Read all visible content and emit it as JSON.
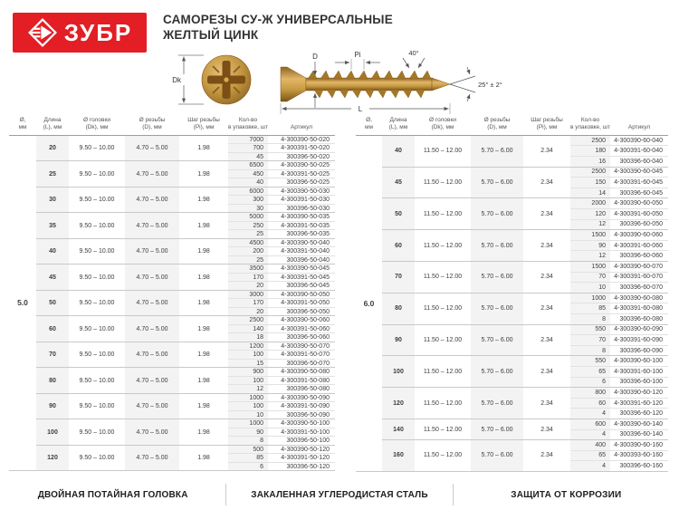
{
  "colors": {
    "brand_red": "#e31e24",
    "row_shade": "#f3f3f3",
    "screw_gold": "#c3963f"
  },
  "logo": {
    "text": "ЗУБР"
  },
  "title": {
    "line1": "САМОРЕЗЫ СУ-Ж УНИВЕРСАЛЬНЫЕ",
    "line2": "ЖЕЛТЫЙ ЦИНК"
  },
  "diagram": {
    "head_label": "Dk",
    "shaft_label": "D",
    "pitch_label": "Pi",
    "flank_angle_label": "40°",
    "tip_angle_label": "25° ± 2°",
    "length_label": "L"
  },
  "table_headers": [
    {
      "l1": "Ø,",
      "l2": "мм"
    },
    {
      "l1": "Длина",
      "l2": "(L), мм"
    },
    {
      "l1": "Ø головки",
      "l2": "(Dk), мм"
    },
    {
      "l1": "Ø резьбы",
      "l2": "(D), мм"
    },
    {
      "l1": "Шаг резьбы",
      "l2": "(Pi), мм"
    },
    {
      "l1": "Кол-во",
      "l2": "в упаковке, шт"
    },
    {
      "l1": "Артикул",
      "l2": ""
    }
  ],
  "tables": [
    {
      "diameter": "5.0",
      "head_diameter": "9.50 – 10.00",
      "thread_diameter": "4.70 – 5.00",
      "thread_pitch": "1.98",
      "groups": [
        {
          "length": "20",
          "packs": [
            [
              "7000",
              "4-300390-50-020"
            ],
            [
              "700",
              "4-300391-50-020"
            ],
            [
              "45",
              "300396-50-020"
            ]
          ]
        },
        {
          "length": "25",
          "packs": [
            [
              "6500",
              "4-300390-50-025"
            ],
            [
              "450",
              "4-300391-50-025"
            ],
            [
              "40",
              "300396-50-025"
            ]
          ]
        },
        {
          "length": "30",
          "packs": [
            [
              "6000",
              "4-300390-50-030"
            ],
            [
              "300",
              "4-300391-50-030"
            ],
            [
              "30",
              "300396-50-030"
            ]
          ]
        },
        {
          "length": "35",
          "packs": [
            [
              "5000",
              "4-300390-50-035"
            ],
            [
              "250",
              "4-300391-50-035"
            ],
            [
              "25",
              "300396-50-035"
            ]
          ]
        },
        {
          "length": "40",
          "packs": [
            [
              "4500",
              "4-300390-50-040"
            ],
            [
              "200",
              "4-300391-50-040"
            ],
            [
              "25",
              "300396-50-040"
            ]
          ]
        },
        {
          "length": "45",
          "packs": [
            [
              "3500",
              "4-300390-50-045"
            ],
            [
              "170",
              "4-300391-50-045"
            ],
            [
              "20",
              "300396-50-045"
            ]
          ]
        },
        {
          "length": "50",
          "packs": [
            [
              "3000",
              "4-300390-50-050"
            ],
            [
              "170",
              "4-300391-50-050"
            ],
            [
              "20",
              "300396-50-050"
            ]
          ]
        },
        {
          "length": "60",
          "packs": [
            [
              "2500",
              "4-300390-50-060"
            ],
            [
              "140",
              "4-300391-50-060"
            ],
            [
              "18",
              "300396-50-060"
            ]
          ]
        },
        {
          "length": "70",
          "packs": [
            [
              "1200",
              "4-300390-50-070"
            ],
            [
              "100",
              "4-300391-50-070"
            ],
            [
              "15",
              "300396-50-070"
            ]
          ]
        },
        {
          "length": "80",
          "packs": [
            [
              "900",
              "4-300390-50-080"
            ],
            [
              "100",
              "4-300391-50-080"
            ],
            [
              "12",
              "300396-50-080"
            ]
          ]
        },
        {
          "length": "90",
          "packs": [
            [
              "1000",
              "4-300390-50-090"
            ],
            [
              "100",
              "4-300391-50-090"
            ],
            [
              "10",
              "300396-50-090"
            ]
          ]
        },
        {
          "length": "100",
          "packs": [
            [
              "1000",
              "4-300390-50-100"
            ],
            [
              "90",
              "4-300391-50-100"
            ],
            [
              "8",
              "300396-50-100"
            ]
          ]
        },
        {
          "length": "120",
          "packs": [
            [
              "500",
              "4-300390-50-120"
            ],
            [
              "85",
              "4-300391-50-120"
            ],
            [
              "6",
              "300396-50-120"
            ]
          ]
        }
      ]
    },
    {
      "diameter": "6.0",
      "head_diameter": "11.50 – 12.00",
      "thread_diameter": "5.70 – 6.00",
      "thread_pitch": "2.34",
      "groups": [
        {
          "length": "40",
          "packs": [
            [
              "2500",
              "4-300390-60-040"
            ],
            [
              "180",
              "4-300391-60-040"
            ],
            [
              "16",
              "300396-60-040"
            ]
          ]
        },
        {
          "length": "45",
          "packs": [
            [
              "2500",
              "4-300390-60-045"
            ],
            [
              "150",
              "4-300391-60-045"
            ],
            [
              "14",
              "300396-60-045"
            ]
          ]
        },
        {
          "length": "50",
          "packs": [
            [
              "2000",
              "4-300390-60-050"
            ],
            [
              "120",
              "4-300391-60-050"
            ],
            [
              "12",
              "300396-60-050"
            ]
          ]
        },
        {
          "length": "60",
          "packs": [
            [
              "1500",
              "4-300390-60-060"
            ],
            [
              "90",
              "4-300391-60-060"
            ],
            [
              "12",
              "300396-60-060"
            ]
          ]
        },
        {
          "length": "70",
          "packs": [
            [
              "1500",
              "4-300390-60-070"
            ],
            [
              "70",
              "4-300391-60-070"
            ],
            [
              "10",
              "300396-60-070"
            ]
          ]
        },
        {
          "length": "80",
          "packs": [
            [
              "1000",
              "4-300390-60-080"
            ],
            [
              "85",
              "4-300391-60-080"
            ],
            [
              "8",
              "300396-60-080"
            ]
          ]
        },
        {
          "length": "90",
          "packs": [
            [
              "550",
              "4-300390-60-090"
            ],
            [
              "70",
              "4-300391-60-090"
            ],
            [
              "8",
              "300396-60-090"
            ]
          ]
        },
        {
          "length": "100",
          "packs": [
            [
              "550",
              "4-300390-60-100"
            ],
            [
              "65",
              "4-300391-60-100"
            ],
            [
              "6",
              "300396-60-100"
            ]
          ]
        },
        {
          "length": "120",
          "packs": [
            [
              "800",
              "4-300390-60-120"
            ],
            [
              "60",
              "4-300391-60-120"
            ],
            [
              "4",
              "300396-60-120"
            ]
          ]
        },
        {
          "length": "140",
          "packs": [
            [
              "600",
              "4-300390-60-140"
            ],
            [
              "4",
              "300396-60-140"
            ]
          ]
        },
        {
          "length": "160",
          "packs": [
            [
              "400",
              "4-300390-60-160"
            ],
            [
              "65",
              "4-300393-60-160"
            ],
            [
              "4",
              "300396-60-160"
            ]
          ]
        }
      ]
    }
  ],
  "footer": {
    "items": [
      "ДВОЙНАЯ ПОТАЙНАЯ ГОЛОВКА",
      "ЗАКАЛЕННАЯ УГЛЕРОДИСТАЯ СТАЛЬ",
      "ЗАЩИТА ОТ КОРРОЗИИ"
    ]
  }
}
